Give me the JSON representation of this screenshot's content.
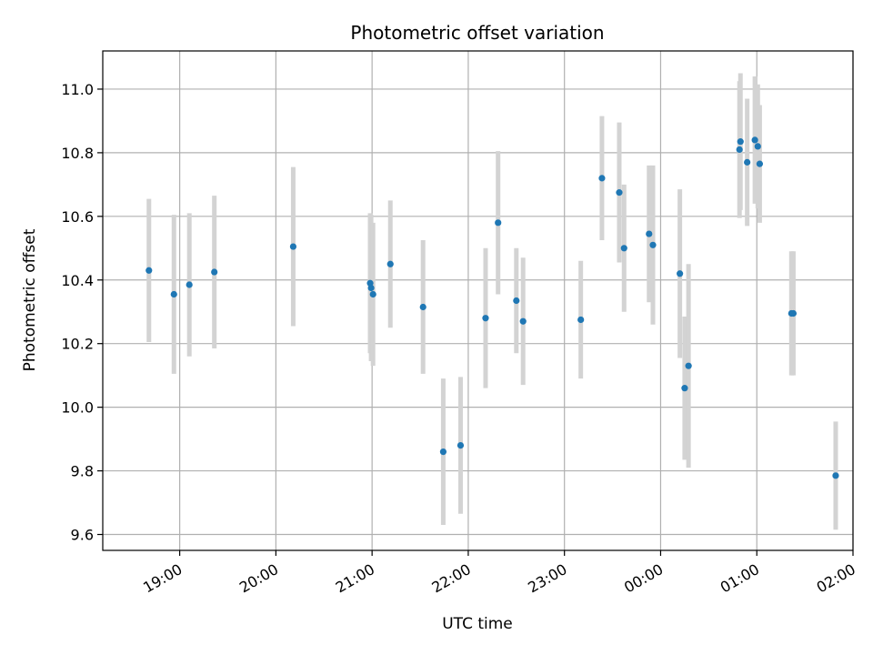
{
  "chart_data": {
    "type": "scatter",
    "title": "Photometric offset variation",
    "xlabel": "UTC time",
    "ylabel": "Photometric offset",
    "x_unit": "hours",
    "xlim": [
      18.2,
      26.0
    ],
    "ylim": [
      9.55,
      11.12
    ],
    "xticks": [
      19,
      20,
      21,
      22,
      23,
      24,
      25,
      26
    ],
    "xtick_labels": [
      "19:00",
      "20:00",
      "21:00",
      "22:00",
      "23:00",
      "00:00",
      "01:00",
      "02:00"
    ],
    "yticks": [
      9.6,
      9.8,
      10.0,
      10.2,
      10.4,
      10.6,
      10.8,
      11.0
    ],
    "ytick_labels": [
      "9.6",
      "9.8",
      "10.0",
      "10.2",
      "10.4",
      "10.6",
      "10.8",
      "11.0"
    ],
    "grid": true,
    "colors": {
      "point": "#1f77b4",
      "errorbar": "#d3d3d3",
      "grid": "#b0b0b0"
    },
    "points": [
      {
        "x": 18.68,
        "y": 10.43,
        "err": 0.225
      },
      {
        "x": 18.94,
        "y": 10.355,
        "err": 0.25
      },
      {
        "x": 19.1,
        "y": 10.385,
        "err": 0.225
      },
      {
        "x": 19.36,
        "y": 10.425,
        "err": 0.24
      },
      {
        "x": 20.18,
        "y": 10.505,
        "err": 0.25
      },
      {
        "x": 20.98,
        "y": 10.39,
        "err": 0.22
      },
      {
        "x": 20.99,
        "y": 10.375,
        "err": 0.23
      },
      {
        "x": 21.01,
        "y": 10.355,
        "err": 0.225
      },
      {
        "x": 21.19,
        "y": 10.45,
        "err": 0.2
      },
      {
        "x": 21.53,
        "y": 10.315,
        "err": 0.21
      },
      {
        "x": 21.74,
        "y": 9.86,
        "err": 0.23
      },
      {
        "x": 21.92,
        "y": 9.88,
        "err": 0.215
      },
      {
        "x": 22.18,
        "y": 10.28,
        "err": 0.22
      },
      {
        "x": 22.31,
        "y": 10.58,
        "err": 0.225
      },
      {
        "x": 22.5,
        "y": 10.335,
        "err": 0.165
      },
      {
        "x": 22.57,
        "y": 10.27,
        "err": 0.2
      },
      {
        "x": 23.17,
        "y": 10.275,
        "err": 0.185
      },
      {
        "x": 23.39,
        "y": 10.72,
        "err": 0.195
      },
      {
        "x": 23.57,
        "y": 10.675,
        "err": 0.22
      },
      {
        "x": 23.62,
        "y": 10.5,
        "err": 0.2
      },
      {
        "x": 23.88,
        "y": 10.545,
        "err": 0.215
      },
      {
        "x": 23.92,
        "y": 10.51,
        "err": 0.25
      },
      {
        "x": 24.2,
        "y": 10.42,
        "err": 0.265
      },
      {
        "x": 24.25,
        "y": 10.06,
        "err": 0.225
      },
      {
        "x": 24.29,
        "y": 10.13,
        "err": 0.32
      },
      {
        "x": 24.82,
        "y": 10.81,
        "err": 0.215
      },
      {
        "x": 24.83,
        "y": 10.835,
        "err": 0.215
      },
      {
        "x": 24.9,
        "y": 10.77,
        "err": 0.2
      },
      {
        "x": 24.98,
        "y": 10.84,
        "err": 0.2
      },
      {
        "x": 25.01,
        "y": 10.82,
        "err": 0.195
      },
      {
        "x": 25.03,
        "y": 10.765,
        "err": 0.185
      },
      {
        "x": 25.36,
        "y": 10.295,
        "err": 0.195
      },
      {
        "x": 25.38,
        "y": 10.295,
        "err": 0.195
      },
      {
        "x": 25.82,
        "y": 9.785,
        "err": 0.17
      }
    ]
  }
}
